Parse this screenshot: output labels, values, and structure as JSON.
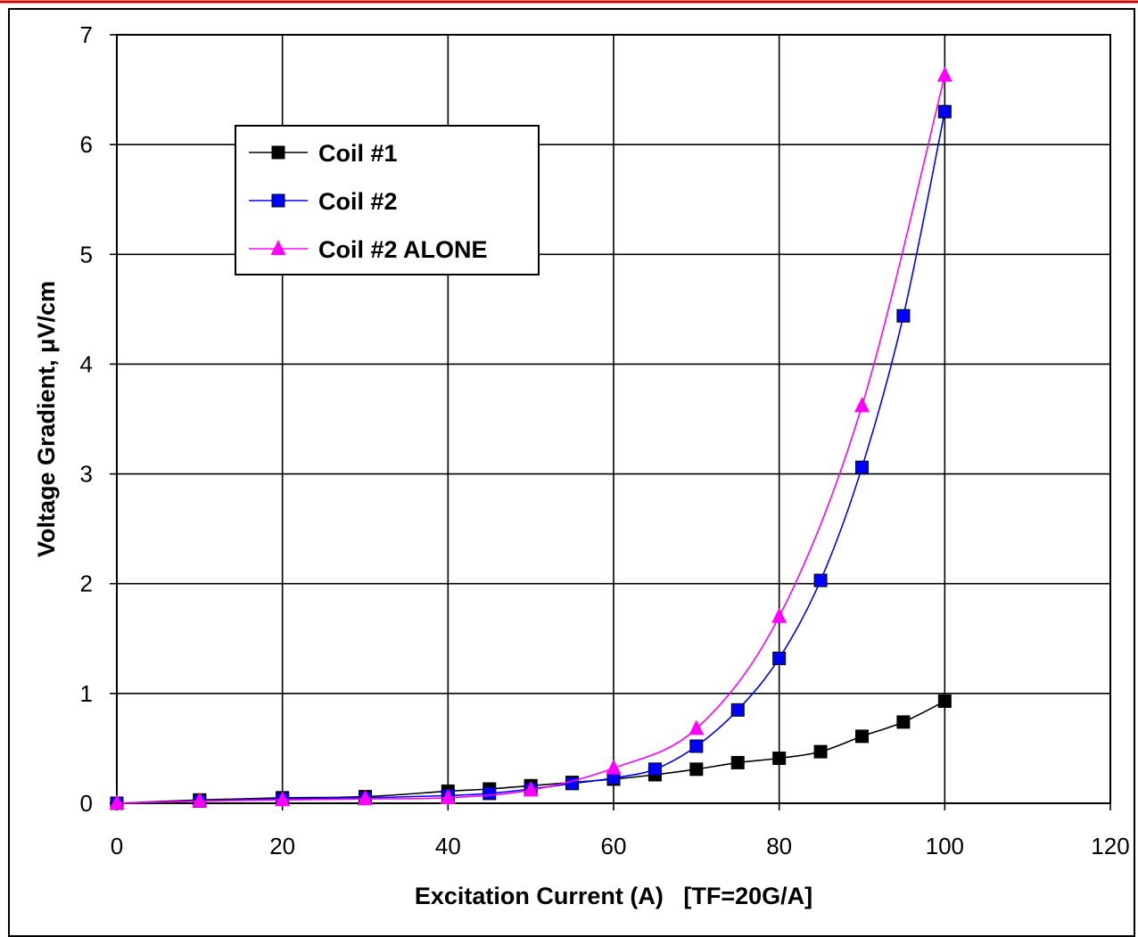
{
  "chart_data": {
    "type": "line",
    "title": "",
    "xlabel": "Excitation Current (A)   [TF=20G/A]",
    "ylabel": "Voltage Gradient, μV/cm",
    "xlim": [
      0,
      120
    ],
    "ylim": [
      0,
      7
    ],
    "xticks": [
      "0",
      "20",
      "40",
      "60",
      "80",
      "100",
      "120"
    ],
    "yticks": [
      "0",
      "1",
      "2",
      "3",
      "4",
      "5",
      "6",
      "7"
    ],
    "grid": true,
    "legend_position": "top-left",
    "series": [
      {
        "name": "Coil #1",
        "color": "#000000",
        "marker": "square",
        "x": [
          0,
          10,
          20,
          30,
          40,
          45,
          50,
          55,
          60,
          65,
          70,
          75,
          80,
          85,
          90,
          95,
          100
        ],
        "y": [
          0.0,
          0.03,
          0.05,
          0.06,
          0.11,
          0.13,
          0.16,
          0.19,
          0.22,
          0.26,
          0.31,
          0.37,
          0.41,
          0.47,
          0.61,
          0.74,
          0.93
        ]
      },
      {
        "name": "Coil #2",
        "color": "#0000ff",
        "marker": "square",
        "x": [
          0,
          10,
          20,
          30,
          40,
          45,
          50,
          55,
          60,
          65,
          70,
          75,
          80,
          85,
          90,
          95,
          100
        ],
        "y": [
          0.0,
          0.02,
          0.04,
          0.05,
          0.07,
          0.09,
          0.13,
          0.18,
          0.23,
          0.31,
          0.52,
          0.85,
          1.32,
          2.03,
          3.06,
          4.44,
          6.3
        ]
      },
      {
        "name": "Coil #2 ALONE",
        "color": "#ff00ff",
        "marker": "triangle",
        "x": [
          0,
          10,
          20,
          30,
          40,
          50,
          60,
          70,
          80,
          90,
          100
        ],
        "y": [
          0.0,
          0.02,
          0.03,
          0.04,
          0.05,
          0.12,
          0.32,
          0.68,
          1.7,
          3.62,
          6.63
        ]
      }
    ]
  }
}
